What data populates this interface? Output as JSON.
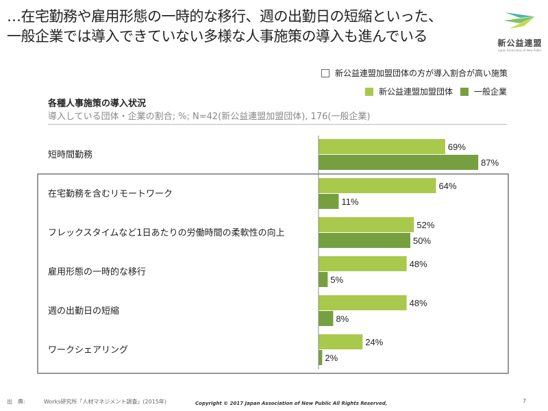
{
  "header": {
    "title_line1": "…在宅勤務や雇用形態の一時的な移行、週の出勤日の短縮といった、",
    "title_line2": "一般企業では導入できていない多様な人事施策の導入も進んでいる",
    "logo_name": "新公益連盟",
    "logo_sub": "Japan Association of New Public"
  },
  "legend": {
    "box_label": "新公益連盟加盟団体の方が導入割合が高い施策"
  },
  "chart_data": {
    "type": "bar",
    "orientation": "horizontal",
    "title": "各種人事施策の導入状況",
    "subtitle": "導入している団体・企業の割合; %; N=42(新公益連盟加盟団体), 176(一般企業)",
    "categories": [
      "短時間勤務",
      "在宅勤務を含むリモートワーク",
      "フレックスタイムなど1日あたりの労働時間の柔軟性の向上",
      "雇用形態の一時的な移行",
      "週の出勤日の短縮",
      "ワークシェアリング"
    ],
    "series": [
      {
        "name": "新公益連盟加盟団体",
        "color": "#a9c94c",
        "values": [
          69,
          64,
          52,
          48,
          48,
          24
        ]
      },
      {
        "name": "一般企業",
        "color": "#76a040",
        "values": [
          87,
          11,
          50,
          5,
          8,
          2
        ]
      }
    ],
    "value_suffix": "%",
    "xlim": [
      0,
      100
    ],
    "highlighted_categories": [
      1,
      2,
      3,
      4,
      5
    ],
    "legend_position": "top-right",
    "grid": false
  },
  "footer": {
    "source_label": "出　典:",
    "source": "Works研究所「人材マネジメント調査」(2015年)",
    "copyright": "Copyright © 2017 Japan Association of New Public All Rights Reserved,",
    "page": "7"
  }
}
